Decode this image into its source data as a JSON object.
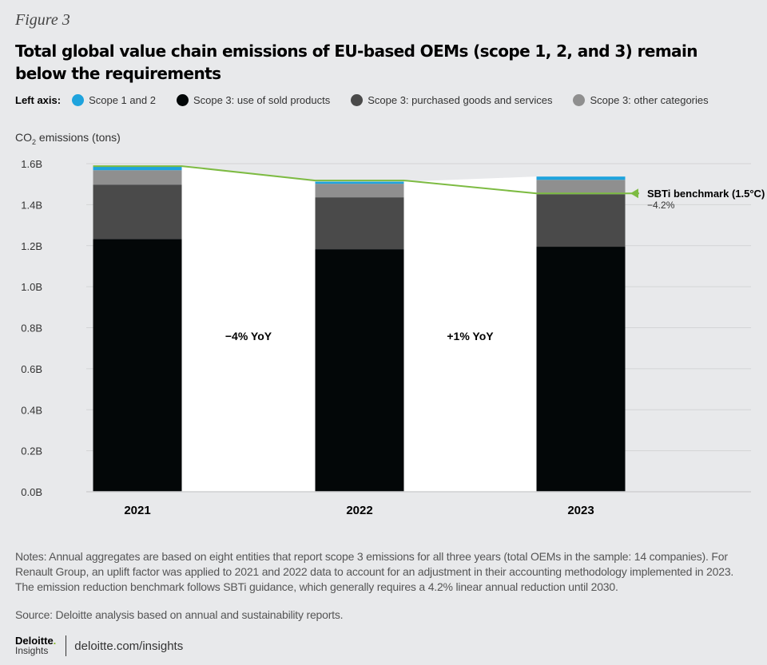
{
  "figure_label": "Figure 3",
  "title": "Total global value chain emissions of EU-based OEMs (scope 1, 2, and 3) remain below the requirements",
  "legend": {
    "lead": "Left axis:",
    "items": [
      {
        "label": "Scope 1 and 2",
        "color": "#1ea3dd"
      },
      {
        "label": "Scope 3: use of sold products",
        "color": "#030708"
      },
      {
        "label": "Scope 3: purchased goods and services",
        "color": "#4a4a4a"
      },
      {
        "label": "Scope 3: other categories",
        "color": "#8f8f8f"
      }
    ]
  },
  "axis_title_main": "CO",
  "axis_title_sub": "2",
  "axis_title_rest": " emissions (tons)",
  "chart_data": {
    "type": "bar",
    "stacked": true,
    "title": "Total global value chain emissions of EU-based OEMs (scope 1, 2, and 3) remain below the requirements",
    "xlabel": "",
    "ylabel": "CO2 emissions (tons)",
    "categories": [
      "2021",
      "2022",
      "2023"
    ],
    "ylim": [
      0,
      1.6
    ],
    "yticks": [
      0.0,
      0.2,
      0.4,
      0.6,
      0.8,
      1.0,
      1.2,
      1.4,
      1.6
    ],
    "ytick_labels": [
      "0.0B",
      "0.2B",
      "0.4B",
      "0.6B",
      "0.8B",
      "1.0B",
      "1.2B",
      "1.4B",
      "1.6B"
    ],
    "unit": "billion tons",
    "grid": true,
    "series": [
      {
        "name": "Scope 3: use of sold products",
        "color": "#030708",
        "values": [
          1.233,
          1.183,
          1.195
        ]
      },
      {
        "name": "Scope 3: purchased goods and services",
        "color": "#4a4a4a",
        "values": [
          0.265,
          0.253,
          0.256
        ]
      },
      {
        "name": "Scope 3: other categories",
        "color": "#8f8f8f",
        "values": [
          0.07,
          0.066,
          0.07
        ]
      },
      {
        "name": "Scope 1 and 2",
        "color": "#1ea3dd",
        "values": [
          0.02,
          0.01,
          0.016
        ]
      }
    ],
    "benchmark": {
      "name": "SBTi benchmark (1.5°C)",
      "sublabel": "−4.2%",
      "color": "#7dbb42",
      "values": [
        1.588,
        1.518,
        1.455
      ]
    },
    "annotations": [
      {
        "text": "−4% YoY",
        "between": [
          "2021",
          "2022"
        ]
      },
      {
        "text": "+1% YoY",
        "between": [
          "2022",
          "2023"
        ]
      }
    ]
  },
  "notes": "Notes: Annual aggregates are based on eight entities that report scope 3 emissions for all three years (total OEMs in the sample: 14 companies). For Renault Group, an uplift factor was applied to 2021 and 2022 data to account for an adjustment in their accounting methodology implemented in 2023. The emission reduction benchmark follows SBTi guidance, which generally requires a 4.2% linear annual reduction until 2030.",
  "source": "Source: Deloitte analysis based on annual and sustainability reports.",
  "footer": {
    "brand_top": "Deloitte",
    "brand_dot": ".",
    "brand_bottom": "Insights",
    "url": "deloitte.com/insights"
  }
}
